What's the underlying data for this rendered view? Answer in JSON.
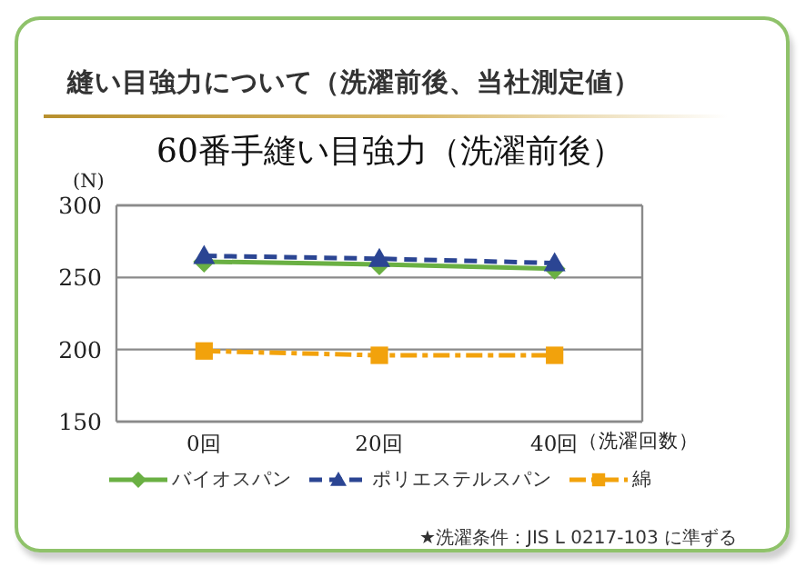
{
  "chart_data": {
    "type": "line",
    "title": "縫い目強力について（洗濯前後、当社測定値）",
    "subtitle": "60番手縫い目強力（洗濯前後）",
    "xlabel": "（洗濯回数）",
    "ylabel": "(N)",
    "categories": [
      "0回",
      "20回",
      "40回"
    ],
    "series": [
      {
        "name": "バイオスパン",
        "color": "#6ab043",
        "values": [
          261,
          259,
          256
        ],
        "marker": "diamond",
        "line_style": "solid"
      },
      {
        "name": "ポリエステルスパン",
        "color": "#2b4593",
        "values": [
          265,
          263,
          260
        ],
        "marker": "triangle",
        "line_style": "dashed"
      },
      {
        "name": "綿",
        "color": "#f2a20c",
        "values": [
          199,
          196,
          196
        ],
        "marker": "square",
        "line_style": "dashdot"
      }
    ],
    "ylim": [
      150,
      300
    ],
    "yticks": [
      150,
      200,
      250,
      300
    ],
    "grid": "y",
    "legend": "bottom",
    "annotations": [
      "★洗濯条件：JIS L 0217-103 に準ずる"
    ]
  }
}
